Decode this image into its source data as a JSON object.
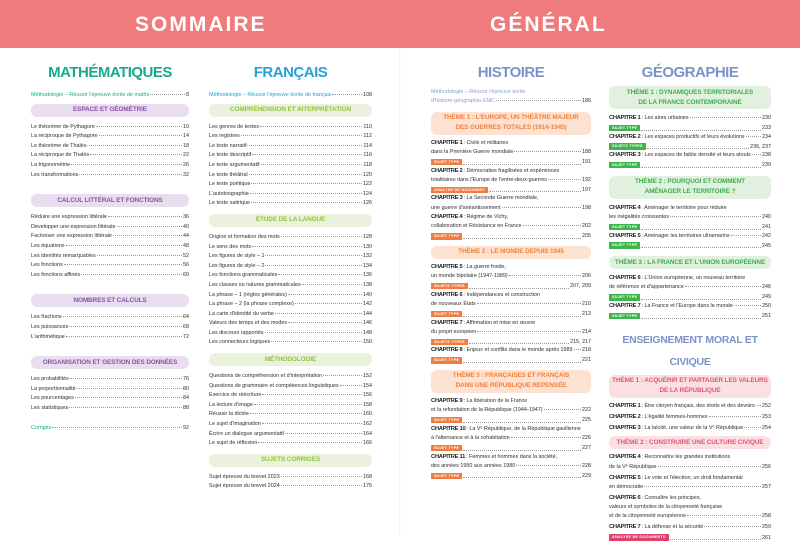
{
  "header": {
    "left": "SOMMAIRE",
    "right": "GÉNÉRAL"
  },
  "colors": {
    "header": "#ef7b7d",
    "maths_title": "#17a98c",
    "maths_box_bg": "#e9def0",
    "maths_box_text": "#8d4fa3",
    "francais_title": "#1aa3d9",
    "francais_box_bg": "#eaf1dc",
    "francais_box_text": "#8dc63f",
    "histoire_title": "#7b93c9",
    "histoire_box_bg": "#fde2d2",
    "histoire_box_text": "#f0813a",
    "histoire_badge": "#f37b3b",
    "geo_box_bg": "#e2f0e0",
    "geo_box_text": "#3cae4b",
    "geo_badge": "#3db54a",
    "emc_box_bg": "#fbe0e3",
    "emc_box_text": "#e25570",
    "emc_badge": "#e0406a"
  },
  "maths": {
    "title": "MATHÉMATIQUES",
    "methodo": {
      "label": "Méthodologie – Réussir l'épreuve écrite de maths",
      "page": "8"
    },
    "sections": [
      {
        "title": "ESPACE ET GÉOMÉTRIE",
        "items": [
          {
            "label": "Le théorème de Pythagore",
            "page": "10"
          },
          {
            "label": "La réciproque de Pythagore",
            "page": "14"
          },
          {
            "label": "Le théorème de Thalès",
            "page": "18"
          },
          {
            "label": "La réciproque de Thalès",
            "page": "22"
          },
          {
            "label": "La trigonométrie",
            "page": "26"
          },
          {
            "label": "Les transformations",
            "page": "32"
          }
        ]
      },
      {
        "title": "CALCUL LITTÉRAL ET FONCTIONS",
        "items": [
          {
            "label": "Réduire une expression littérale",
            "page": "36"
          },
          {
            "label": "Développer une expression littérale",
            "page": "40"
          },
          {
            "label": "Factoriser une expression littérale",
            "page": "44"
          },
          {
            "label": "Les équations",
            "page": "48"
          },
          {
            "label": "Les identités remarquables",
            "page": "52"
          },
          {
            "label": "Les fonctions",
            "page": "56"
          },
          {
            "label": "Les fonctions affines",
            "page": "60"
          }
        ]
      },
      {
        "title": "NOMBRES ET CALCULS",
        "items": [
          {
            "label": "Les fractions",
            "page": "64"
          },
          {
            "label": "Les puissances",
            "page": "68"
          },
          {
            "label": "L'arithmétique",
            "page": "72"
          }
        ]
      },
      {
        "title": "ORGANISATION ET GESTION DES DONNÉES",
        "items": [
          {
            "label": "Les probabilités",
            "page": "76"
          },
          {
            "label": "La proportionnalité",
            "page": "80"
          },
          {
            "label": "Les pourcentages",
            "page": "84"
          },
          {
            "label": "Les statistiques",
            "page": "88"
          }
        ]
      }
    ],
    "corriges": {
      "label": "Corrigés",
      "page": "92"
    }
  },
  "francais": {
    "title": "FRANÇAIS",
    "methodo": {
      "label": "Méthodologie – Réussir l'épreuve écrite de français",
      "page": "108"
    },
    "sections": [
      {
        "title": "COMPRÉHENSION ET INTERPRÉTATION",
        "items": [
          {
            "label": "Les genres de textes",
            "page": "110"
          },
          {
            "label": "Les registres",
            "page": "112"
          },
          {
            "label": "Le texte narratif",
            "page": "114"
          },
          {
            "label": "Le texte descriptif",
            "page": "116"
          },
          {
            "label": "Le texte argumentatif",
            "page": "118"
          },
          {
            "label": "Le texte théâtral",
            "page": "120"
          },
          {
            "label": "Le texte poétique",
            "page": "122"
          },
          {
            "label": "L'autobiographie",
            "page": "124"
          },
          {
            "label": "Le texte satirique",
            "page": "126"
          }
        ]
      },
      {
        "title": "ÉTUDE DE LA LANGUE",
        "items": [
          {
            "label": "Origine et formation des mots",
            "page": "128"
          },
          {
            "label": "Le sens des mots",
            "page": "130"
          },
          {
            "label": "Les figures de style – 1",
            "page": "132"
          },
          {
            "label": "Les figures de style – 2",
            "page": "134"
          },
          {
            "label": "Les fonctions grammaticales",
            "page": "136"
          },
          {
            "label": "Les classes ou natures grammaticales",
            "page": "138"
          },
          {
            "label": "La phrase – 1 (règles générales)",
            "page": "140"
          },
          {
            "label": "La phrase – 2 (la phrase complexe)",
            "page": "142"
          },
          {
            "label": "La carte d'identité du verbe",
            "page": "144"
          },
          {
            "label": "Valeurs des temps et des modes",
            "page": "146"
          },
          {
            "label": "Les discours rapportés",
            "page": "148"
          },
          {
            "label": "Les connecteurs logiques",
            "page": "150"
          }
        ]
      },
      {
        "title": "MÉTHODOLOGIE",
        "items": [
          {
            "label": "Questions de compréhension et d'interprétation",
            "page": "152"
          },
          {
            "label": "Questions de grammaire et compétences linguistiques",
            "page": "154"
          },
          {
            "label": "Exercice de réécriture",
            "page": "156"
          },
          {
            "label": "La lecture d'image",
            "page": "158"
          },
          {
            "label": "Réussir la dictée",
            "page": "160"
          },
          {
            "label": "Le sujet d'imagination",
            "page": "162"
          },
          {
            "label": "Écrire un dialogue argumentatif",
            "page": "164"
          },
          {
            "label": "Le sujet de réflexion",
            "page": "166"
          }
        ]
      },
      {
        "title": "SUJETS CORRIGÉS",
        "items": [
          {
            "label": "Sujet épreuve du brevet 2023",
            "page": "168"
          },
          {
            "label": "Sujet épreuve du brevet 2024",
            "page": "176"
          }
        ]
      }
    ]
  },
  "histoire": {
    "title": "HISTOIRE",
    "methodo": {
      "lines": [
        "Méthodologie – Réussir l'épreuve écrite",
        "d'histoire-géographie-EMC"
      ],
      "page": "186"
    },
    "themes": [
      {
        "title_lines": [
          "THÈME 1 : L'EUROPE, UN THÉÂTRE MAJEUR",
          "DES GUERRES TOTALES (1914-1945)"
        ],
        "chapters": [
          {
            "label": "CHAPITRE 1",
            "lines": [
              ": Civils et militaires",
              "dans la Première Guerre mondiale"
            ],
            "page": "188",
            "badge": {
              "label": "SUJET TYPE",
              "page": "191"
            }
          },
          {
            "label": "CHAPITRE 2",
            "lines": [
              ": Démocraties fragilisées et expériences",
              "totalitaires dans l'Europe de l'entre-deux-guerres"
            ],
            "page": "192",
            "badge": {
              "label": "ANALYSE DE DOCUMENT",
              "page": "197"
            }
          },
          {
            "label": "CHAPITRE 3",
            "lines": [
              ": La Seconde Guerre mondiale,",
              "une guerre d'anéantissement"
            ],
            "page": "198"
          },
          {
            "label": "CHAPITRE 4",
            "lines": [
              ": Régime de Vichy,",
              "collaboration et Résistance en France"
            ],
            "page": "202",
            "badge": {
              "label": "SUJET TYPE",
              "page": "205"
            }
          }
        ]
      },
      {
        "title_lines": [
          "THÈME 2 : LE MONDE DEPUIS 1945"
        ],
        "chapters": [
          {
            "label": "CHAPITRE 5",
            "lines": [
              ": La guerre froide,",
              "un monde bipolaire (1947-1989)"
            ],
            "page": "206",
            "badge": {
              "label": "SUJETS TYPES",
              "page": "207, 209"
            }
          },
          {
            "label": "CHAPITRE 6",
            "lines": [
              ": Indépendances et construction",
              "de nouveaux États"
            ],
            "page": "210",
            "badge": {
              "label": "SUJET TYPE",
              "page": "213"
            }
          },
          {
            "label": "CHAPITRE 7",
            "lines": [
              ": Affirmation et mise en œuvre",
              "du projet européen"
            ],
            "page": "214",
            "badge": {
              "label": "SUJETS TYPES",
              "page": "215, 217"
            }
          },
          {
            "label": "CHAPITRE 8",
            "lines": [
              ": Enjeux et conflits dans le monde après 1989"
            ],
            "page": "218",
            "badge": {
              "label": "SUJET TYPE",
              "page": "221"
            }
          }
        ]
      },
      {
        "title_lines": [
          "THÈME 3 : FRANÇAISES ET FRANÇAIS",
          "DANS UNE RÉPUBLIQUE REPENSÉE"
        ],
        "chapters": [
          {
            "label": "CHAPITRE 9",
            "lines": [
              ": La libération de la France",
              "et la refondation de la République (1944-1947)"
            ],
            "page": "222",
            "badge": {
              "label": "SUJET TYPE",
              "page": "225"
            }
          },
          {
            "label": "CHAPITRE 10",
            "lines": [
              ": La Vᵉ République, de la République gaullienne",
              "à l'alternance et à la cohabitation"
            ],
            "page": "226",
            "badge": {
              "label": "SUJET TYPE",
              "page": "227"
            }
          },
          {
            "label": "CHAPITRE 11",
            "lines": [
              ": Femmes et hommes dans la société,",
              "des années 1950 aux années 1980"
            ],
            "page": "228",
            "badge": {
              "label": "SUJET TYPE",
              "page": "229"
            }
          }
        ]
      }
    ]
  },
  "geographie": {
    "title": "GÉOGRAPHIE",
    "themes": [
      {
        "title_lines": [
          "THÈME 1 : DYNAMIQUES TERRITORIALES",
          "DE LA FRANCE CONTEMPORAINE"
        ],
        "chapters": [
          {
            "label": "CHAPITRE 1",
            "lines": [
              ": Les aires urbaines"
            ],
            "page": "230",
            "badge": {
              "label": "SUJET TYPE",
              "page": "233"
            }
          },
          {
            "label": "CHAPITRE 2",
            "lines": [
              ": Les espaces productifs et leurs évolutions"
            ],
            "page": "234",
            "badge": {
              "label": "SUJETS TYPES",
              "page": "236, 237"
            }
          },
          {
            "label": "CHAPITRE 3",
            "lines": [
              ": Les espaces de faible densité et leurs atouts"
            ],
            "page": "238",
            "badge": {
              "label": "SUJET TYPE",
              "page": "239"
            }
          }
        ]
      },
      {
        "title_lines": [
          "THÈME 2 : POURQUOI ET COMMENT",
          "AMÉNAGER LE TERRITOIRE ?"
        ],
        "chapters": [
          {
            "label": "CHAPITRE 4",
            "lines": [
              ": Aménager le territoire pour réduire",
              "les inégalités croissantes"
            ],
            "page": "240",
            "badge": {
              "label": "SUJET TYPE",
              "page": "241"
            }
          },
          {
            "label": "CHAPITRE 5",
            "lines": [
              ": Aménager les territoires ultramarins"
            ],
            "page": "242",
            "badge": {
              "label": "SUJET TYPE",
              "page": "245"
            }
          }
        ]
      },
      {
        "title_lines": [
          "THÈME 3 : LA FRANCE ET L'UNION EUROPÉENNE"
        ],
        "chapters": [
          {
            "label": "CHAPITRE 6",
            "lines": [
              ": L'Union européenne, un nouveau territoire",
              "de référence et d'appartenance"
            ],
            "page": "246",
            "badge": {
              "label": "SUJET TYPE",
              "page": "249"
            }
          },
          {
            "label": "CHAPITRE 7",
            "lines": [
              ": La France et l'Europe dans le monde"
            ],
            "page": "250",
            "badge": {
              "label": "SUJET TYPE",
              "page": "251"
            }
          }
        ]
      }
    ]
  },
  "emc": {
    "title": "ENSEIGNEMENT MORAL ET CIVIQUE",
    "themes": [
      {
        "title_lines": [
          "THÈME 1 : ACQUÉRIR ET PARTAGER LES VALEURS",
          "DE LA RÉPUBLIQUE"
        ],
        "chapters": [
          {
            "label": "CHAPITRE 1",
            "lines": [
              ": Être citoyen français, des droits et des devoirs"
            ],
            "page": "252"
          },
          {
            "label": "CHAPITRE 2",
            "lines": [
              ": L'égalité femmes-hommes"
            ],
            "page": "253"
          },
          {
            "label": "CHAPITRE 3",
            "lines": [
              ": La laïcité, une valeur de la Vᵉ République"
            ],
            "page": "254"
          }
        ]
      },
      {
        "title_lines": [
          "THÈME 2 : CONSTRUIRE UNE CULTURE CIVIQUE"
        ],
        "chapters": [
          {
            "label": "CHAPITRE 4",
            "lines": [
              ": Reconnaître les grandes institutions",
              "de la Vᵉ République"
            ],
            "page": "256"
          },
          {
            "label": "CHAPITRE 5",
            "lines": [
              ": Le vote et l'élection, un droit fondamental",
              "en démocratie"
            ],
            "page": "257"
          },
          {
            "label": "CHAPITRE 6",
            "lines": [
              ": Connaître les principes,",
              "valeurs et symboles de la citoyenneté française",
              "et de la citoyenneté européenne"
            ],
            "page": "258"
          },
          {
            "label": "CHAPITRE 7",
            "lines": [
              ": La défense et la sécurité"
            ],
            "page": "259",
            "badge": {
              "label": "ANALYSE DE DOCUMENTS",
              "page": "261"
            }
          }
        ]
      }
    ]
  }
}
